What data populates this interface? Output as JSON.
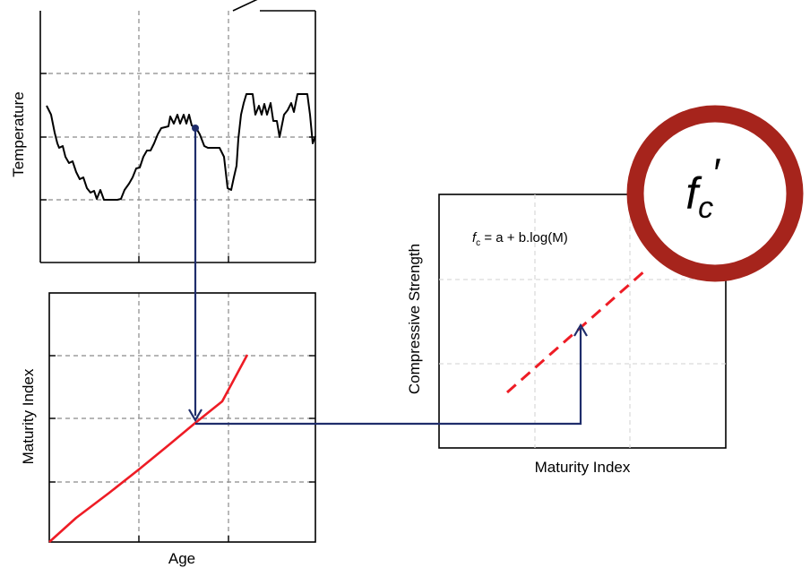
{
  "temperature_panel": {
    "ylabel": "Temperature"
  },
  "maturity_panel": {
    "ylabel": "Maturity Index",
    "xlabel": "Age"
  },
  "strength_panel": {
    "ylabel": "Compressive Strength",
    "xlabel": "Maturity Index",
    "equation_var": "f",
    "equation_sub": "c",
    "equation_rest": " = a + b.log(M)"
  },
  "badge": {
    "symbol": "f",
    "subscript": "c",
    "prime": "′"
  },
  "colors": {
    "temperature_line": "#000000",
    "maturity_curve": "#ee1c25",
    "strength_fit": "#ee1c25",
    "connector": "#1f2d6b",
    "badge_ring": "#a6241c",
    "grid_dark": "#8a8a8a",
    "grid_light": "#d9d9d9"
  }
}
